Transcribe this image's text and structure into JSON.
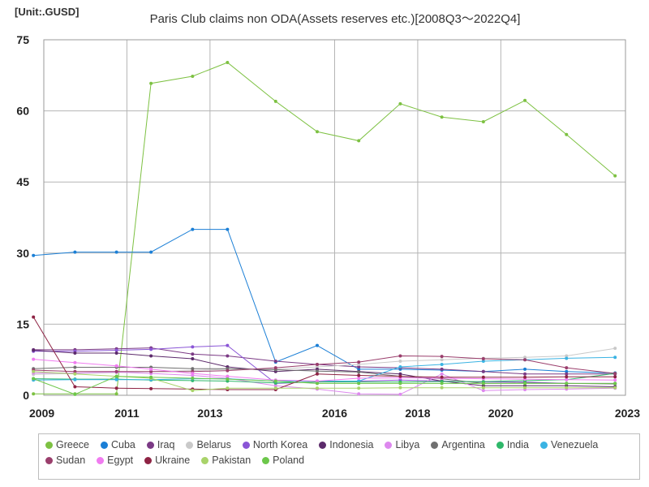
{
  "header": {
    "unit": "[Unit:.GUSD]",
    "title": "Paris Club claims non ODA(Assets reserves etc.)[2008Q3～2022Q4]"
  },
  "chart_data": {
    "type": "line",
    "title": "Paris Club claims non ODA(Assets reserves etc.)[2008Q3～2022Q4]",
    "unit": "[Unit:.GUSD]",
    "x": [
      2008.75,
      2009.75,
      2010.75,
      2011.58,
      2012.58,
      2013.42,
      2014.58,
      2015.58,
      2016.58,
      2017.58,
      2018.58,
      2019.58,
      2020.58,
      2021.58,
      2022.75
    ],
    "xlim": [
      2009,
      2023
    ],
    "xticks": [
      2009,
      2011,
      2013,
      2016,
      2018,
      2020,
      2023
    ],
    "ylim": [
      0,
      75
    ],
    "yticks": [
      0,
      15,
      30,
      45,
      60,
      75
    ],
    "grid": true,
    "legend_position": "bottom",
    "series": [
      {
        "name": "Greece",
        "color": "#7dc142",
        "values": [
          0.3,
          0.3,
          0.3,
          65.8,
          67.3,
          70.2,
          62.0,
          55.6,
          53.7,
          61.5,
          58.7,
          57.7,
          62.2,
          55.0,
          46.3
        ]
      },
      {
        "name": "Cuba",
        "color": "#1b7fd6",
        "values": [
          29.5,
          30.2,
          30.2,
          30.2,
          35.0,
          35.0,
          7.0,
          10.5,
          5.5,
          5.5,
          5.3,
          5.0,
          5.5,
          5.0,
          4.7
        ]
      },
      {
        "name": "Iraq",
        "color": "#7b3a85",
        "values": [
          9.6,
          9.6,
          9.8,
          10.0,
          8.7,
          8.3,
          7.2,
          6.5,
          6.0,
          5.8,
          5.5,
          5.0,
          4.5,
          4.5,
          4.5
        ]
      },
      {
        "name": "Belarus",
        "color": "#c9c9c9",
        "values": [
          4.4,
          4.6,
          4.8,
          5.0,
          5.2,
          5.5,
          5.5,
          6.0,
          6.5,
          7.2,
          7.5,
          7.8,
          8.0,
          8.3,
          9.9
        ]
      },
      {
        "name": "North Korea",
        "color": "#8a55d6",
        "values": [
          9.3,
          9.3,
          9.5,
          9.7,
          10.2,
          10.5,
          2.5,
          2.8,
          3.0,
          3.2,
          3.0,
          2.8,
          2.8,
          2.5,
          2.5
        ]
      },
      {
        "name": "Indonesia",
        "color": "#5c2a6b",
        "values": [
          9.5,
          8.9,
          8.9,
          8.3,
          7.7,
          6.0,
          5.0,
          5.5,
          5.0,
          4.5,
          3.0,
          2.0,
          2.0,
          2.0,
          1.8
        ]
      },
      {
        "name": "Libya",
        "color": "#dd88ee",
        "values": [
          4.7,
          4.7,
          4.9,
          4.6,
          4.2,
          3.6,
          2.0,
          1.3,
          0.3,
          0.2,
          4.5,
          1.0,
          1.2,
          1.3,
          1.5
        ]
      },
      {
        "name": "Argentina",
        "color": "#707070",
        "values": [
          5.6,
          5.9,
          5.9,
          5.9,
          5.6,
          5.6,
          5.4,
          5.1,
          4.9,
          4.0,
          3.5,
          2.5,
          2.6,
          2.5,
          2.4
        ]
      },
      {
        "name": "India",
        "color": "#2fb86a",
        "values": [
          3.5,
          3.4,
          3.4,
          3.2,
          3.1,
          3.0,
          2.6,
          2.8,
          2.8,
          2.8,
          2.9,
          2.9,
          3.1,
          3.3,
          4.6
        ]
      },
      {
        "name": "Venezuela",
        "color": "#3ab3e3",
        "values": [
          3.2,
          3.3,
          3.3,
          3.3,
          3.5,
          3.5,
          3.0,
          3.0,
          3.0,
          6.0,
          6.5,
          7.2,
          7.5,
          7.8,
          8.0
        ]
      },
      {
        "name": "Sudan",
        "color": "#9a3e6c",
        "values": [
          5.3,
          5.0,
          5.0,
          5.0,
          5.0,
          5.2,
          5.8,
          6.5,
          7.0,
          8.3,
          8.2,
          7.7,
          7.5,
          5.8,
          4.6
        ]
      },
      {
        "name": "Egypt",
        "color": "#f07cf0",
        "values": [
          7.6,
          6.9,
          6.2,
          5.5,
          4.6,
          4.0,
          3.2,
          3.0,
          3.6,
          3.7,
          3.6,
          3.5,
          3.4,
          3.3,
          3.2
        ]
      },
      {
        "name": "Ukraine",
        "color": "#8e2344",
        "values": [
          16.5,
          1.8,
          1.5,
          1.4,
          1.3,
          1.2,
          1.2,
          4.5,
          4.2,
          4.0,
          3.8,
          3.8,
          3.8,
          3.9,
          3.9
        ]
      },
      {
        "name": "Pakistan",
        "color": "#a9d36a",
        "values": [
          5.0,
          4.5,
          4.0,
          3.6,
          1.0,
          1.5,
          1.5,
          1.5,
          1.5,
          1.6,
          1.6,
          1.6,
          1.6,
          1.6,
          1.6
        ]
      },
      {
        "name": "Poland",
        "color": "#6cc74a",
        "values": [
          3.5,
          0.2,
          4.0,
          3.8,
          3.6,
          3.4,
          3.0,
          2.5,
          2.5,
          2.5,
          2.5,
          2.5,
          2.5,
          2.5,
          2.5
        ]
      }
    ]
  }
}
